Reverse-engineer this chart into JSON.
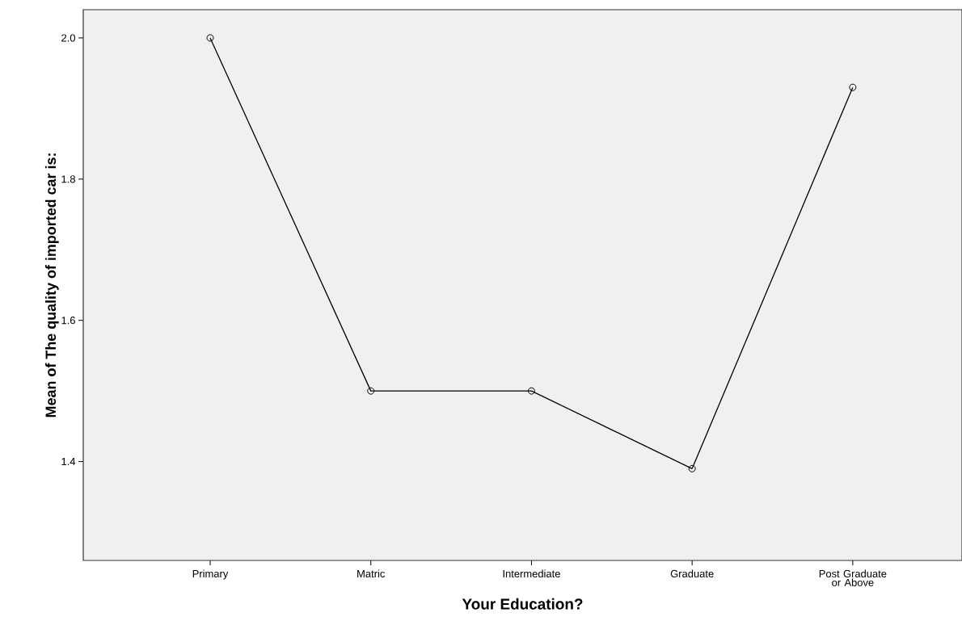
{
  "chart_data": {
    "type": "line",
    "xlabel": "Your Education?",
    "ylabel": "Mean of The quality of imported car is:",
    "categories": [
      "Primary",
      "Matric",
      "Intermediate",
      "Graduate",
      "Post Graduate or Above"
    ],
    "values": [
      2.0,
      1.5,
      1.5,
      1.39,
      1.93
    ],
    "color": "#000000",
    "marker": "circle",
    "line_style": "solid",
    "ylim": [
      1.26,
      2.04
    ],
    "yticks": [
      {
        "value": 1.4,
        "label": "1.4"
      },
      {
        "value": 1.6,
        "label": "1.6"
      },
      {
        "value": 1.8,
        "label": "1.8"
      },
      {
        "value": 2.0,
        "label": "2.0"
      }
    ],
    "grid": false
  }
}
